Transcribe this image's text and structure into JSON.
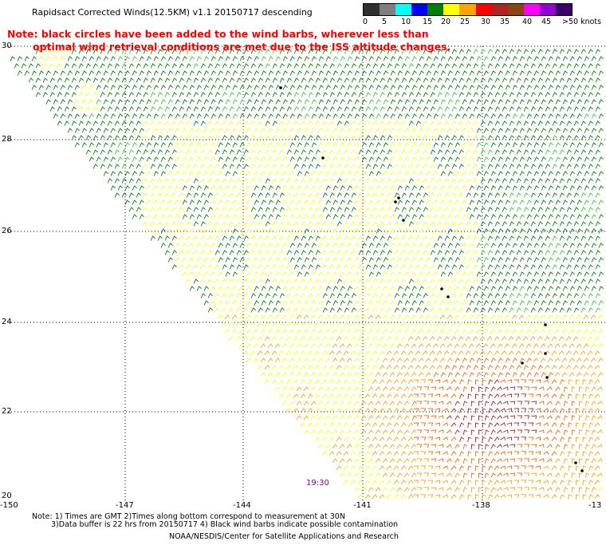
{
  "title": "Rapidsact Corrected Winds(12.5KM) v1.1 20150717 descending",
  "note": {
    "line1": "Note: black circles have been added to the wind barbs, wherever less than",
    "line2": "optimal wind retrieval conditions are met due to the ISS altitude changes."
  },
  "legend": {
    "labels": [
      "0",
      "5",
      "10",
      "15",
      "20",
      "25",
      "30",
      "35",
      "40",
      "45",
      ">50 knots"
    ],
    "colors": [
      "#303030",
      "#7f7f7f",
      "#00ffff",
      "#0000ff",
      "#008000",
      "#ffff00",
      "#ffa500",
      "#ff0000",
      "#b22222",
      "#8b4513",
      "#ff00ff",
      "#9400d3",
      "#3a006a"
    ]
  },
  "map": {
    "lat_labels": [
      "30",
      "28",
      "26",
      "24",
      "22",
      "20"
    ],
    "lon_labels": [
      "-150",
      "-147",
      "-144",
      "-141",
      "-138",
      "-13"
    ],
    "timestamp": "19:30"
  },
  "footer": {
    "line1": "Note: 1) Times are GMT 2)Times along bottom correspond to measurement at 30N",
    "line2": "3)Data buffer is 22 hrs from 20150717 4) Black wind barbs indicate possible contamination",
    "credit": "NOAA/NESDIS/Center for Satellite Applications and Research"
  }
}
